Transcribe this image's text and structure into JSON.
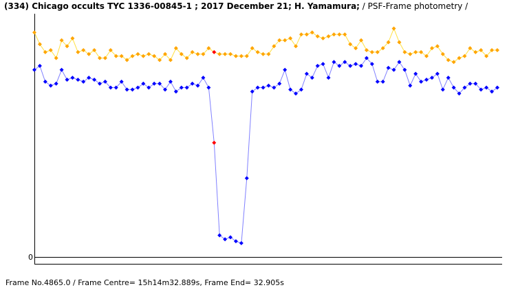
{
  "header": {
    "title": "(334) Chicago occults TYC 1336-00845-1 ; 2017 December 21; H. Yamamura;",
    "method": "/ PSF-Frame photometry /"
  },
  "footer": {
    "text": "Frame No.4865.0 / Frame Centre= 15h14m32.889s,  Frame End= 32.905s"
  },
  "colors": {
    "target": "#0000ff",
    "comparison": "#ffa500",
    "highlight": "#ff0000",
    "target_line": "#8080ff",
    "comparison_line": "#ffe040"
  },
  "chart_data": {
    "type": "line",
    "title": "(334) Chicago occults TYC 1336-00845-1 ; 2017 December 21; H. Yamamura;",
    "xlabel": "",
    "ylabel": "",
    "y_tick_labels": [
      "0"
    ],
    "ylim": [
      0,
      1.2
    ],
    "grid": false,
    "highlighted_frame_index": 33,
    "series": [
      {
        "role": "target",
        "values": [
          0.95,
          0.97,
          0.89,
          0.87,
          0.88,
          0.95,
          0.9,
          0.91,
          0.9,
          0.89,
          0.91,
          0.9,
          0.88,
          0.89,
          0.86,
          0.86,
          0.89,
          0.85,
          0.85,
          0.86,
          0.88,
          0.86,
          0.88,
          0.88,
          0.85,
          0.89,
          0.84,
          0.86,
          0.86,
          0.88,
          0.87,
          0.91,
          0.86,
          0.58,
          0.11,
          0.09,
          0.1,
          0.08,
          0.07,
          0.4,
          0.84,
          0.86,
          0.86,
          0.87,
          0.86,
          0.88,
          0.95,
          0.85,
          0.83,
          0.85,
          0.93,
          0.91,
          0.97,
          0.98,
          0.91,
          0.99,
          0.97,
          0.99,
          0.97,
          0.98,
          0.97,
          1.01,
          0.98,
          0.89,
          0.89,
          0.96,
          0.95,
          0.99,
          0.95,
          0.87,
          0.93,
          0.89,
          0.9,
          0.91,
          0.93,
          0.85,
          0.91,
          0.86,
          0.83,
          0.86,
          0.88,
          0.88,
          0.85,
          0.86,
          0.84,
          0.86
        ]
      },
      {
        "role": "comparison",
        "values": [
          1.14,
          1.08,
          1.04,
          1.05,
          1.01,
          1.1,
          1.07,
          1.11,
          1.04,
          1.05,
          1.03,
          1.05,
          1.01,
          1.01,
          1.05,
          1.02,
          1.02,
          1.0,
          1.02,
          1.03,
          1.02,
          1.03,
          1.02,
          1.0,
          1.03,
          1.0,
          1.06,
          1.03,
          1.01,
          1.04,
          1.03,
          1.03,
          1.06,
          1.04,
          1.03,
          1.03,
          1.03,
          1.02,
          1.02,
          1.02,
          1.06,
          1.04,
          1.03,
          1.03,
          1.07,
          1.1,
          1.1,
          1.11,
          1.07,
          1.13,
          1.13,
          1.14,
          1.12,
          1.11,
          1.12,
          1.13,
          1.13,
          1.13,
          1.08,
          1.06,
          1.1,
          1.05,
          1.04,
          1.04,
          1.06,
          1.09,
          1.16,
          1.09,
          1.04,
          1.03,
          1.04,
          1.04,
          1.02,
          1.06,
          1.07,
          1.03,
          1.0,
          0.99,
          1.01,
          1.02,
          1.06,
          1.04,
          1.05,
          1.02,
          1.05,
          1.05
        ]
      }
    ]
  }
}
